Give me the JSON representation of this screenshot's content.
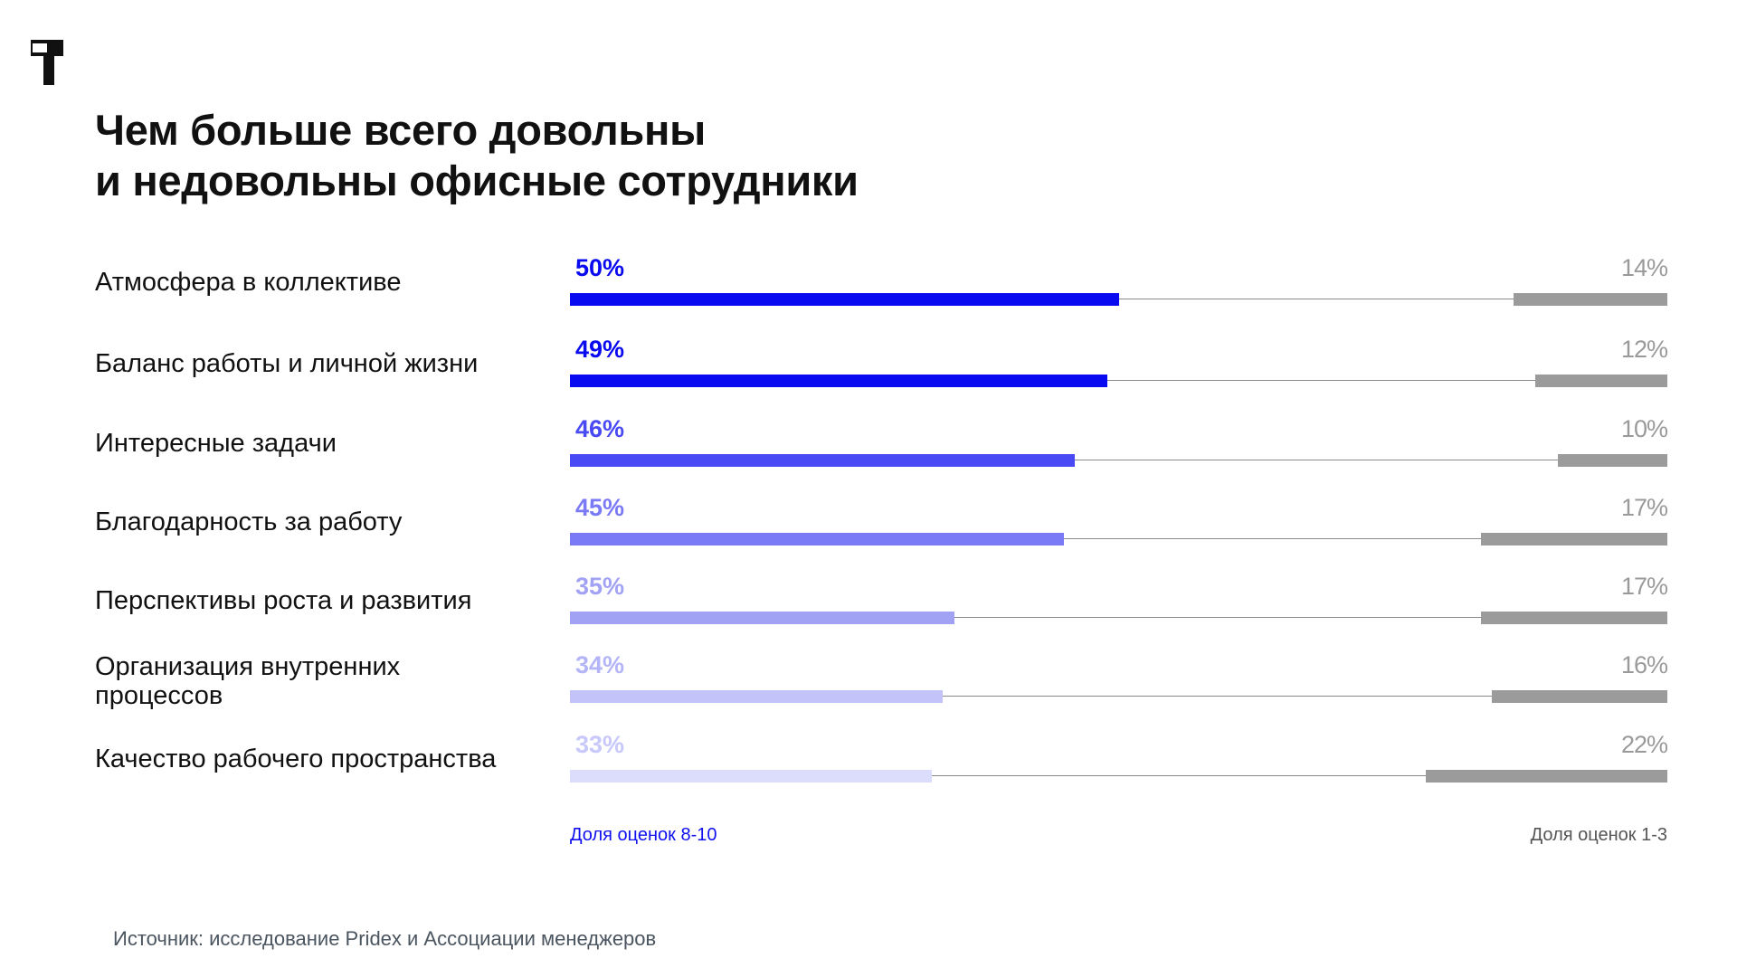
{
  "title_lines": [
    "Чем больше всего довольны",
    "и недовольны офисные сотрудники"
  ],
  "chart_data": {
    "type": "bar",
    "categories": [
      "Атмосфера в коллективе",
      "Баланс работы и личной жизни",
      "Интересные задачи",
      "Благодарность за работу",
      "Перспективы роста и развития",
      "Организация внутренних процессов",
      "Качество рабочего пространства"
    ],
    "series": [
      {
        "name": "Доля оценок 8-10",
        "values": [
          50,
          49,
          46,
          45,
          35,
          34,
          33
        ]
      },
      {
        "name": "Доля оценок 1-3",
        "values": [
          14,
          12,
          10,
          17,
          17,
          16,
          22
        ]
      }
    ],
    "value_labels": {
      "satisfied": [
        "50%",
        "49%",
        "46%",
        "45%",
        "35%",
        "34%",
        "33%"
      ],
      "dissatisfied": [
        "14%",
        "12%",
        "10%",
        "17%",
        "17%",
        "16%",
        "22%"
      ]
    },
    "xlim": [
      0,
      100
    ],
    "colors": {
      "satisfied": [
        "#0a0af0",
        "#0a0af0",
        "#4a4af5",
        "#7a7af7",
        "#a2a2f5",
        "#c3c3fa",
        "#dcdcfc"
      ],
      "satisfied_label": [
        "#0a0af0",
        "#0a0af0",
        "#4a4af5",
        "#7a7af7",
        "#a2a2f5",
        "#b4b4f8",
        "#c8c8fa"
      ],
      "dissatisfied": "#9b9b9b",
      "track": "#8a8a8a"
    },
    "legend": {
      "satisfied": "Доля оценок 8-10",
      "dissatisfied": "Доля оценок 1-3"
    }
  },
  "source": "Источник: исследование Pridex и Ассоциации менеджеров",
  "logo": {
    "icon": "brand-logo-icon",
    "color": "#111111"
  }
}
